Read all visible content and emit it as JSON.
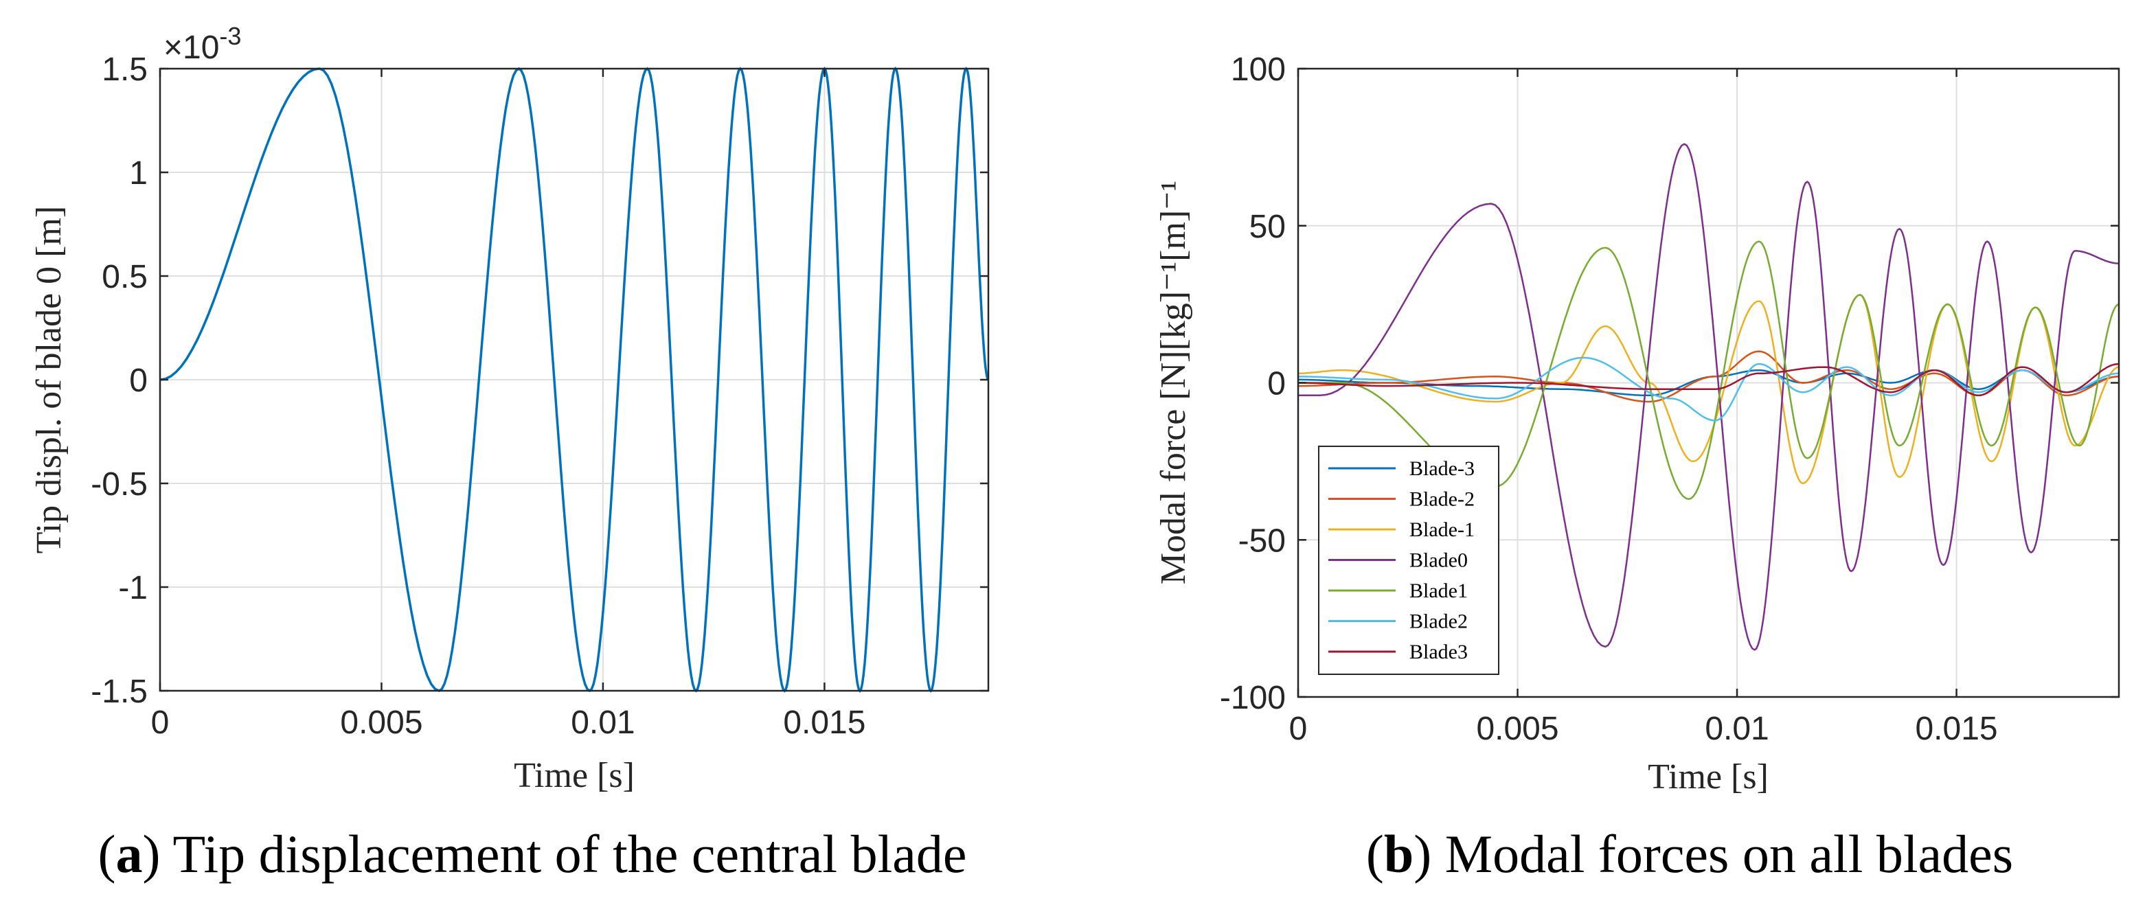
{
  "chart_data": [
    {
      "type": "line",
      "panel_label": "a",
      "caption": "Tip displacement of the central blade",
      "xlabel": "Time [s]",
      "ylabel": "Tip displ. of blade 0 [m]",
      "xlim": [
        0,
        0.0187
      ],
      "ylim": [
        -1.5,
        1.5
      ],
      "xticks": [
        0,
        0.005,
        0.01,
        0.015
      ],
      "xtick_labels": [
        "0",
        "0.005",
        "0.01",
        "0.015"
      ],
      "yticks": [
        -1.5,
        -1,
        -0.5,
        0,
        0.5,
        1,
        1.5
      ],
      "ytick_labels": [
        "-1.5",
        "-1",
        "-0.5",
        "0",
        "0.5",
        "1",
        "1.5"
      ],
      "y_exponent_label": "×10",
      "y_exponent_power": "-3",
      "grid": true,
      "series": [
        {
          "name": "Tip displacement",
          "color": "#0072BD",
          "x": [
            0,
            0.0036,
            0.0063,
            0.0081,
            0.0097,
            0.011,
            0.0121,
            0.0131,
            0.0141,
            0.015,
            0.0158,
            0.0166,
            0.0174,
            0.0182,
            0.0187
          ],
          "y": [
            0,
            1.5,
            -1.5,
            1.5,
            -1.5,
            1.5,
            -1.5,
            1.5,
            -1.5,
            1.5,
            -1.5,
            1.5,
            -1.5,
            1.5,
            0
          ]
        }
      ]
    },
    {
      "type": "line",
      "panel_label": "b",
      "caption": "Modal forces on all blades",
      "xlabel": "Time [s]",
      "ylabel": "Modal force [N][kg]⁻¹[m]⁻¹",
      "xlim": [
        0,
        0.0187
      ],
      "ylim": [
        -100,
        100
      ],
      "xticks": [
        0,
        0.005,
        0.01,
        0.015
      ],
      "xtick_labels": [
        "0",
        "0.005",
        "0.01",
        "0.015"
      ],
      "yticks": [
        -100,
        -50,
        0,
        50,
        100
      ],
      "ytick_labels": [
        "-100",
        "-50",
        "0",
        "50",
        "100"
      ],
      "grid": true,
      "legend_position": "bottom-left",
      "series": [
        {
          "name": "Blade-3",
          "color": "#0072BD",
          "x": [
            0,
            0.002,
            0.004,
            0.006,
            0.008,
            0.0095,
            0.0105,
            0.0115,
            0.0125,
            0.0135,
            0.0145,
            0.0155,
            0.0165,
            0.0175,
            0.0187
          ],
          "y": [
            1,
            0,
            -1,
            -2,
            -4,
            2,
            4,
            0,
            3,
            0,
            4,
            -2,
            4,
            -3,
            2
          ]
        },
        {
          "name": "Blade-2",
          "color": "#D95319",
          "x": [
            0,
            0.002,
            0.0045,
            0.006,
            0.008,
            0.0095,
            0.0105,
            0.0115,
            0.0125,
            0.0135,
            0.0145,
            0.0155,
            0.0165,
            0.0175,
            0.0187
          ],
          "y": [
            -1,
            0,
            2,
            0,
            -6,
            2,
            10,
            0,
            4,
            -2,
            3,
            -4,
            4,
            -4,
            2
          ]
        },
        {
          "name": "Blade-1",
          "color": "#EDB120",
          "x": [
            0,
            0.001,
            0.0045,
            0.006,
            0.007,
            0.008,
            0.009,
            0.0105,
            0.0115,
            0.0128,
            0.0137,
            0.0148,
            0.0158,
            0.0168,
            0.0177,
            0.0187
          ],
          "y": [
            3,
            4,
            -6,
            0,
            18,
            0,
            -25,
            26,
            -32,
            28,
            -30,
            25,
            -25,
            24,
            -20,
            5
          ]
        },
        {
          "name": "Blade0",
          "color": "#7E2F8E",
          "x": [
            0,
            0.0005,
            0.0044,
            0.007,
            0.0088,
            0.0104,
            0.0116,
            0.0126,
            0.0137,
            0.0147,
            0.0157,
            0.0167,
            0.0177,
            0.0187
          ],
          "y": [
            -4,
            -4,
            57,
            -84,
            76,
            -85,
            64,
            -60,
            49,
            -58,
            45,
            -54,
            42,
            38
          ]
        },
        {
          "name": "Blade1",
          "color": "#77AC30",
          "x": [
            0,
            0.001,
            0.0045,
            0.007,
            0.0089,
            0.0105,
            0.0116,
            0.0128,
            0.0137,
            0.0148,
            0.0158,
            0.0168,
            0.0178,
            0.0187
          ],
          "y": [
            0,
            0,
            -33,
            43,
            -37,
            45,
            -24,
            28,
            -20,
            25,
            -20,
            24,
            -20,
            25
          ]
        },
        {
          "name": "Blade2",
          "color": "#4DBEEE",
          "x": [
            0,
            0.002,
            0.0045,
            0.0065,
            0.0085,
            0.0095,
            0.0105,
            0.0115,
            0.0125,
            0.0135,
            0.0145,
            0.0155,
            0.0165,
            0.0175,
            0.0187
          ],
          "y": [
            2,
            1,
            -5,
            8,
            -5,
            -12,
            6,
            -3,
            5,
            -4,
            4,
            -3,
            4,
            -3,
            3
          ]
        },
        {
          "name": "Blade3",
          "color": "#A2142F",
          "x": [
            0,
            0.002,
            0.005,
            0.008,
            0.0095,
            0.0105,
            0.012,
            0.0135,
            0.0145,
            0.0155,
            0.0165,
            0.0175,
            0.0187
          ],
          "y": [
            0,
            -1,
            0,
            -2,
            -2,
            3,
            5,
            -3,
            4,
            -4,
            5,
            -3,
            6
          ]
        }
      ]
    }
  ]
}
